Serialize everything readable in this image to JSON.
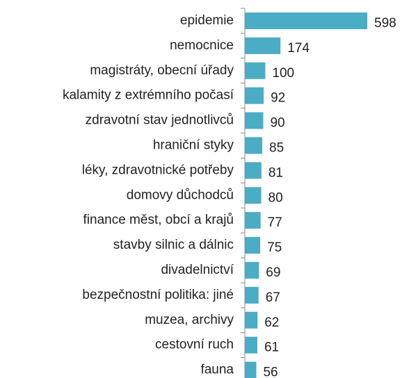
{
  "chart_data": {
    "type": "bar",
    "orientation": "horizontal",
    "categories": [
      "epidemie",
      "nemocnice",
      "magistráty, obecní úřady",
      "kalamity z extrémního počasí",
      "zdravotní stav jednotlivců",
      "hraniční styky",
      "léky, zdravotnické potřeby",
      "domovy důchodců",
      "finance měst, obcí a krajů",
      "stavby silnic a dálnic",
      "divadelnictví",
      "bezpečnostní politika: jiné",
      "muzea, archivy",
      "cestovní ruch",
      "fauna"
    ],
    "values": [
      598,
      174,
      100,
      92,
      90,
      85,
      81,
      80,
      77,
      75,
      69,
      67,
      62,
      61,
      56
    ],
    "color": "#4bacc6"
  }
}
